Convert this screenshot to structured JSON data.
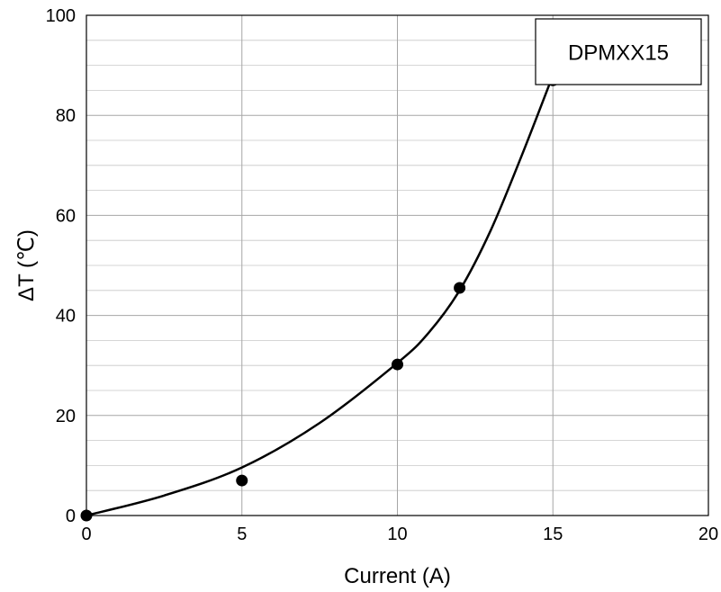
{
  "chart_data": {
    "type": "scatter",
    "xlabel": "Current (A)",
    "ylabel": "ΔT (℃)",
    "xlim": [
      0,
      20
    ],
    "ylim": [
      0,
      100
    ],
    "x_ticks": [
      "0",
      "5",
      "10",
      "15",
      "20"
    ],
    "y_ticks": [
      "0",
      "20",
      "40",
      "60",
      "80",
      "100"
    ],
    "x_tick_values": [
      0,
      5,
      10,
      15,
      20
    ],
    "y_tick_values": [
      0,
      20,
      40,
      60,
      80,
      100
    ],
    "x_minor_step": 5,
    "y_minor_step": 4,
    "grid": true,
    "legend": {
      "label": "DPMXX15",
      "position": "top-right"
    },
    "series": [
      {
        "type": "scatter",
        "points": [
          {
            "x": 0,
            "y": 0
          },
          {
            "x": 5,
            "y": 7
          },
          {
            "x": 10,
            "y": 30.2
          },
          {
            "x": 12,
            "y": 45.5
          },
          {
            "x": 15,
            "y": 87
          }
        ]
      },
      {
        "type": "line",
        "points": [
          {
            "x": 0,
            "y": 0
          },
          {
            "x": 2.5,
            "y": 4
          },
          {
            "x": 5,
            "y": 9.6
          },
          {
            "x": 7.5,
            "y": 18.5
          },
          {
            "x": 10,
            "y": 30.5
          },
          {
            "x": 11,
            "y": 36.5
          },
          {
            "x": 12,
            "y": 45
          },
          {
            "x": 13,
            "y": 57
          },
          {
            "x": 14,
            "y": 72
          },
          {
            "x": 15,
            "y": 88
          }
        ]
      }
    ]
  }
}
